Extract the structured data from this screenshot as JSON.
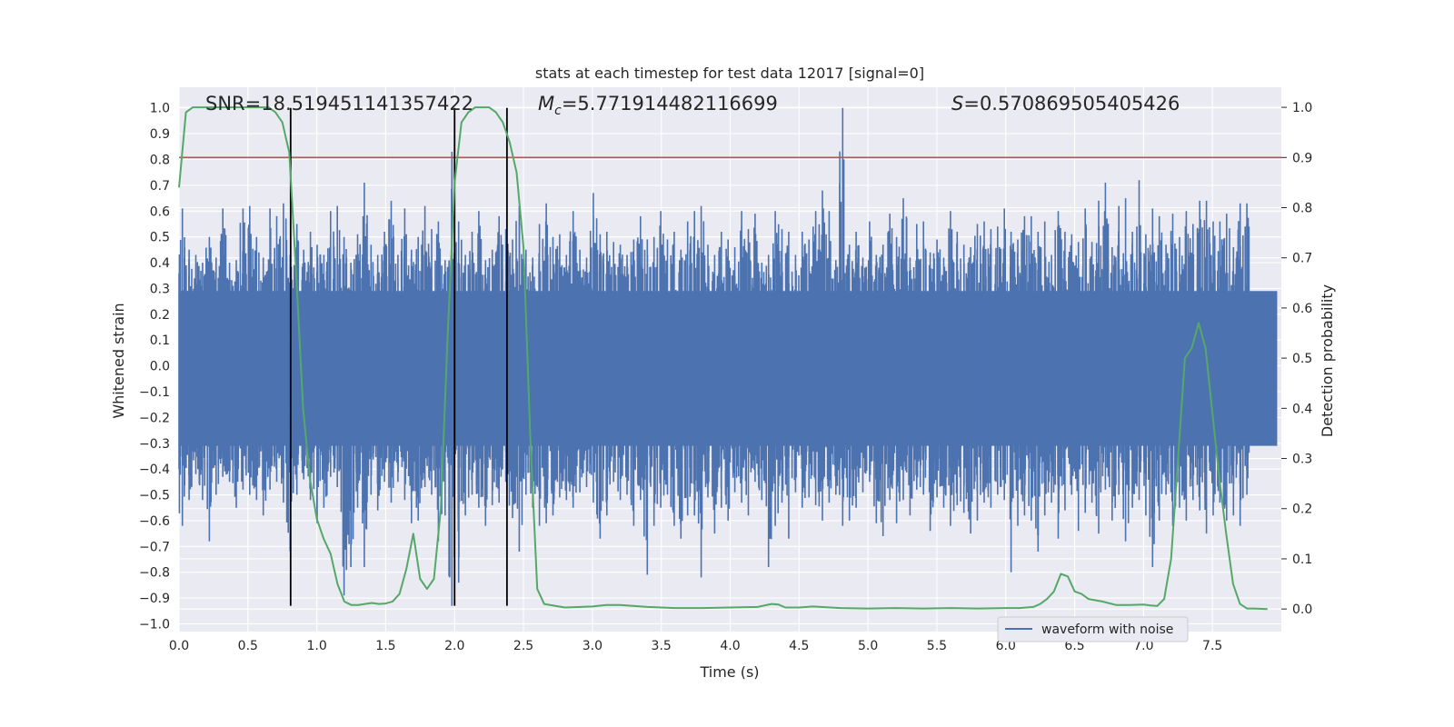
{
  "chart_data": {
    "type": "line",
    "title": "stats at each timestep for test data 12017 [signal=0]",
    "xlabel": "Time (s)",
    "ylabel_left": "Whitened strain",
    "ylabel_right": "Detection probability",
    "xlim": [
      0,
      8
    ],
    "ylim_left": [
      -1.03,
      1.08
    ],
    "ylim_right": [
      -0.045,
      1.04
    ],
    "x_ticks": [
      "0.0",
      "0.5",
      "1.0",
      "1.5",
      "2.0",
      "2.5",
      "3.0",
      "3.5",
      "4.0",
      "4.5",
      "5.0",
      "5.5",
      "6.0",
      "6.5",
      "7.0",
      "7.5"
    ],
    "y_ticks_left": [
      "1.0",
      "0.9",
      "0.8",
      "0.7",
      "0.6",
      "0.5",
      "0.4",
      "0.3",
      "0.2",
      "0.1",
      "0.0",
      "−0.1",
      "−0.2",
      "−0.3",
      "−0.4",
      "−0.5",
      "−0.6",
      "−0.7",
      "−0.8",
      "−0.9",
      "−1.0"
    ],
    "y_ticks_right": [
      "1.0",
      "0.9",
      "0.8",
      "0.7",
      "0.6",
      "0.5",
      "0.4",
      "0.3",
      "0.2",
      "0.1",
      "0.0"
    ],
    "grid": true,
    "legend": {
      "position": "lower-right",
      "entries": [
        "waveform with noise"
      ]
    },
    "annotations": {
      "snr": "SNR=18.519451141357422",
      "mc_symbol": "M",
      "mc_sub": "c",
      "mc_value": "=5.771914482116699",
      "s_symbol": "S",
      "s_value": "=0.570869505405426"
    },
    "threshold_right": 0.9,
    "vertical_lines_x": [
      0.81,
      2.0,
      2.38
    ],
    "vertical_lines_yrange": [
      -0.93,
      1.0
    ],
    "series": [
      {
        "name": "waveform with noise",
        "axis": "left",
        "color": "#4c72b0",
        "envelope_top": [
          0.61,
          0.45,
          0.43,
          0.4,
          0.5,
          0.42,
          0.61,
          0.4,
          0.41,
          0.61,
          0.62,
          0.5,
          0.42,
          0.61,
          0.58,
          0.63,
          0.43,
          0.55,
          0.45,
          0.52,
          0.47,
          0.43,
          0.6,
          0.62,
          0.5,
          0.4,
          0.51,
          0.71,
          0.47,
          0.43,
          0.52,
          0.64,
          0.43,
          0.61,
          0.45,
          0.5,
          0.62,
          0.53,
          0.56,
          0.41,
          0.83,
          0.56,
          0.43,
          0.52,
          0.6,
          0.41,
          0.45,
          0.58,
          0.53,
          0.49,
          0.62,
          0.45,
          0.42,
          0.55,
          0.63,
          0.5,
          0.51,
          0.43,
          0.6,
          0.45,
          0.42,
          0.67,
          0.51,
          0.52,
          0.48,
          0.47,
          0.43,
          0.49,
          0.58,
          0.49,
          0.5,
          0.6,
          0.49,
          0.52,
          0.45,
          0.56,
          0.6,
          0.62,
          0.47,
          0.43,
          0.52,
          0.49,
          0.46,
          0.6,
          0.53,
          0.59,
          0.4,
          0.43,
          0.6,
          0.53,
          0.52,
          0.43,
          0.52,
          0.49,
          0.6,
          0.68,
          0.6,
          0.41,
          1.0,
          0.47,
          0.52,
          0.42,
          0.56,
          0.43,
          0.47,
          0.59,
          0.5,
          0.65,
          0.42,
          0.55,
          0.56,
          0.44,
          0.49,
          0.42,
          0.6,
          0.52,
          0.47,
          0.46,
          0.55,
          0.56,
          0.53,
          0.54,
          0.61,
          0.52,
          0.49,
          0.58,
          0.58,
          0.52,
          0.56,
          0.43,
          0.6,
          0.52,
          0.51,
          0.48,
          0.61,
          0.48,
          0.64,
          0.71,
          0.46,
          0.62,
          0.65,
          0.52,
          0.72,
          0.51,
          0.61,
          0.58,
          0.47,
          0.59,
          0.5,
          0.6,
          0.55,
          0.64,
          0.64,
          0.56,
          0.56,
          0.59,
          0.46,
          0.63,
          0.63,
          0.55,
          0.45,
          0.52,
          0.46
        ],
        "envelope_bottom": [
          -0.62,
          -0.52,
          -0.42,
          -0.52,
          -0.68,
          -0.5,
          -0.43,
          -0.45,
          -0.55,
          -0.48,
          -0.5,
          -0.52,
          -0.58,
          -0.48,
          -0.45,
          -0.53,
          -0.72,
          -0.5,
          -0.44,
          -0.52,
          -0.61,
          -0.55,
          -0.43,
          -0.47,
          -0.89,
          -0.78,
          -0.55,
          -0.78,
          -0.5,
          -0.56,
          -0.45,
          -0.53,
          -0.45,
          -0.52,
          -0.61,
          -0.6,
          -0.47,
          -0.5,
          -0.68,
          -0.58,
          -0.93,
          -0.84,
          -0.58,
          -0.5,
          -0.55,
          -0.62,
          -0.54,
          -0.53,
          -0.45,
          -0.59,
          -0.72,
          -0.5,
          -0.55,
          -0.62,
          -0.61,
          -0.58,
          -0.51,
          -0.52,
          -0.55,
          -0.49,
          -0.47,
          -0.53,
          -0.67,
          -0.58,
          -0.45,
          -0.52,
          -0.5,
          -0.62,
          -0.52,
          -0.81,
          -0.62,
          -0.55,
          -0.5,
          -0.62,
          -0.67,
          -0.58,
          -0.58,
          -0.82,
          -0.51,
          -0.65,
          -0.55,
          -0.6,
          -0.49,
          -0.53,
          -0.58,
          -0.45,
          -0.52,
          -0.78,
          -0.62,
          -0.53,
          -0.67,
          -0.49,
          -0.55,
          -0.51,
          -0.54,
          -0.6,
          -0.53,
          -0.5,
          -0.62,
          -0.6,
          -0.55,
          -0.49,
          -0.45,
          -0.61,
          -0.66,
          -0.52,
          -0.61,
          -0.52,
          -0.58,
          -0.48,
          -0.5,
          -0.64,
          -0.51,
          -0.55,
          -0.62,
          -0.54,
          -0.57,
          -0.65,
          -0.6,
          -0.53,
          -0.55,
          -0.5,
          -0.52,
          -0.8,
          -0.62,
          -0.58,
          -0.6,
          -0.72,
          -0.58,
          -0.53,
          -0.67,
          -0.56,
          -0.5,
          -0.64,
          -0.57,
          -0.53,
          -0.65,
          -0.48,
          -0.6,
          -0.5,
          -0.68,
          -0.55,
          -0.52,
          -0.58,
          -0.78,
          -0.6,
          -0.5,
          -0.62,
          -0.55,
          -0.6,
          -0.52,
          -0.56,
          -0.65,
          -0.58,
          -0.53,
          -0.6,
          -0.58,
          -0.62,
          -0.5
        ]
      },
      {
        "name": "",
        "axis": "right",
        "color": "#55a868",
        "x": [
          0.0,
          0.05,
          0.1,
          0.2,
          0.3,
          0.4,
          0.5,
          0.55,
          0.6,
          0.65,
          0.7,
          0.75,
          0.8,
          0.85,
          0.9,
          0.95,
          1.0,
          1.05,
          1.1,
          1.15,
          1.2,
          1.25,
          1.3,
          1.35,
          1.4,
          1.45,
          1.5,
          1.55,
          1.6,
          1.65,
          1.7,
          1.75,
          1.8,
          1.85,
          1.9,
          1.95,
          2.0,
          2.05,
          2.1,
          2.15,
          2.2,
          2.25,
          2.3,
          2.35,
          2.4,
          2.45,
          2.5,
          2.55,
          2.6,
          2.65,
          2.8,
          3.0,
          3.1,
          3.2,
          3.4,
          3.6,
          3.8,
          4.0,
          4.2,
          4.3,
          4.35,
          4.4,
          4.5,
          4.6,
          4.8,
          5.0,
          5.2,
          5.4,
          5.6,
          5.8,
          6.0,
          6.1,
          6.2,
          6.25,
          6.3,
          6.35,
          6.4,
          6.45,
          6.5,
          6.55,
          6.6,
          6.7,
          6.8,
          6.9,
          7.0,
          7.05,
          7.1,
          7.15,
          7.2,
          7.25,
          7.3,
          7.35,
          7.4,
          7.45,
          7.5,
          7.55,
          7.6,
          7.65,
          7.7,
          7.75,
          7.8,
          7.9
        ],
        "y": [
          0.84,
          0.99,
          1.0,
          1.0,
          1.0,
          1.0,
          1.0,
          1.0,
          1.0,
          1.0,
          0.99,
          0.97,
          0.91,
          0.67,
          0.4,
          0.26,
          0.18,
          0.14,
          0.11,
          0.05,
          0.015,
          0.008,
          0.008,
          0.01,
          0.012,
          0.01,
          0.011,
          0.015,
          0.03,
          0.08,
          0.15,
          0.06,
          0.04,
          0.06,
          0.2,
          0.55,
          0.85,
          0.97,
          0.99,
          1.0,
          1.0,
          1.0,
          0.99,
          0.97,
          0.93,
          0.87,
          0.72,
          0.34,
          0.04,
          0.01,
          0.003,
          0.005,
          0.008,
          0.008,
          0.004,
          0.002,
          0.002,
          0.003,
          0.004,
          0.01,
          0.009,
          0.003,
          0.003,
          0.005,
          0.002,
          0.001,
          0.002,
          0.001,
          0.002,
          0.001,
          0.002,
          0.002,
          0.004,
          0.01,
          0.02,
          0.035,
          0.07,
          0.065,
          0.035,
          0.03,
          0.02,
          0.015,
          0.008,
          0.008,
          0.009,
          0.007,
          0.006,
          0.02,
          0.1,
          0.3,
          0.5,
          0.52,
          0.57,
          0.52,
          0.39,
          0.26,
          0.15,
          0.05,
          0.01,
          0.001,
          0.001,
          0.0
        ]
      }
    ]
  }
}
